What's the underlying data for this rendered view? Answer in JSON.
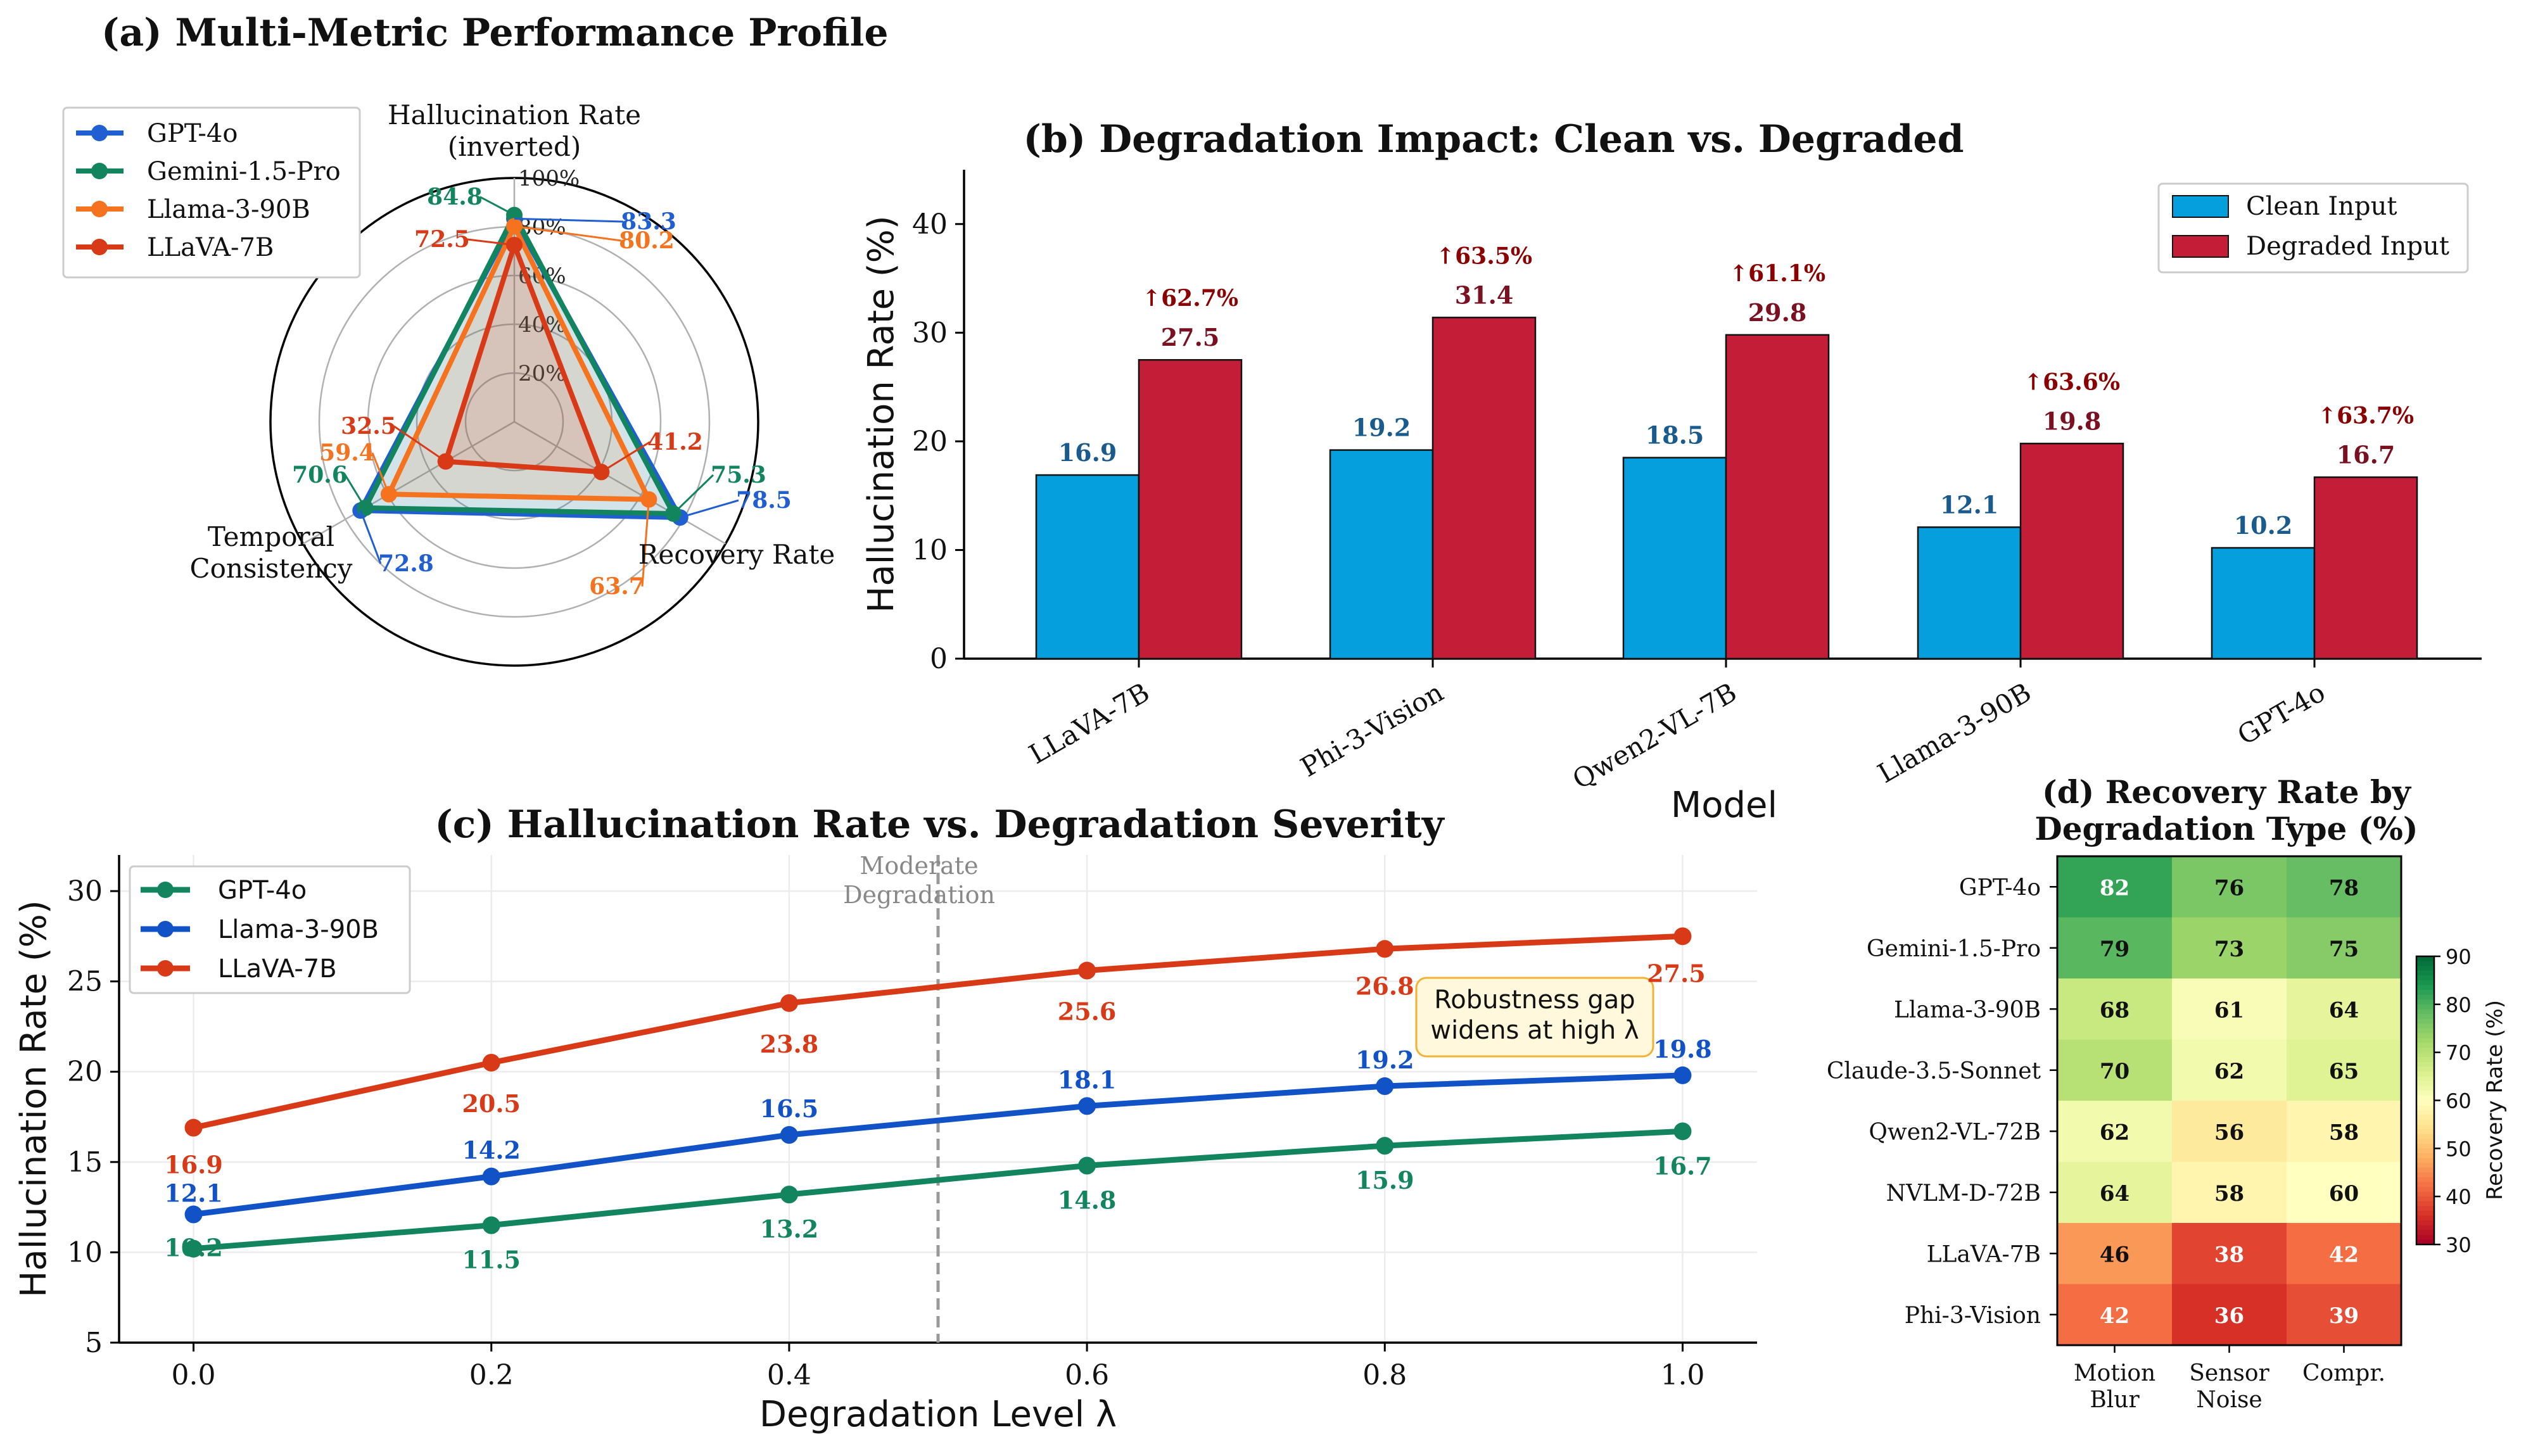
{
  "colors": {
    "gpt4o_radar": "#1f5fd1",
    "gemini": "#12855f",
    "llama_radar": "#f5731f",
    "llava": "#d83a17",
    "clean_bar": "#059fdd",
    "degraded_bar": "#c41d38",
    "gpt4o_line": "#12855f",
    "llama_line": "#1152c6",
    "llava_line": "#d83a17",
    "pct_annot": "#8b0000",
    "annot_box_bg": "#fff8dc",
    "annot_box_border": "#f2b233"
  },
  "chart_data": [
    {
      "id": "a",
      "type": "radar",
      "title": "(a) Multi-Metric Performance Profile",
      "axes": [
        "Hallucination Rate\n(inverted)",
        "Recovery Rate",
        "Temporal\nConsistency"
      ],
      "radial_ticks": [
        "20%",
        "40%",
        "60%",
        "80%",
        "100%"
      ],
      "rlim": [
        0,
        100
      ],
      "series": [
        {
          "name": "GPT-4o",
          "values": [
            83.3,
            78.5,
            72.8
          ]
        },
        {
          "name": "Gemini-1.5-Pro",
          "values": [
            84.8,
            75.3,
            70.6
          ]
        },
        {
          "name": "Llama-3-90B",
          "values": [
            80.2,
            63.7,
            59.4
          ]
        },
        {
          "name": "LLaVA-7B",
          "values": [
            72.5,
            41.2,
            32.5
          ]
        }
      ],
      "legend": "top-left"
    },
    {
      "id": "b",
      "type": "bar",
      "title": "(b) Degradation Impact: Clean vs. Degraded",
      "xlabel": "Model",
      "ylabel": "Hallucination Rate (%)",
      "ylim": [
        0,
        45
      ],
      "yticks": [
        0,
        10,
        20,
        30,
        40
      ],
      "categories": [
        "LLaVA-7B",
        "Phi-3-Vision",
        "Qwen2-VL-7B",
        "Llama-3-90B",
        "GPT-4o"
      ],
      "series": [
        {
          "name": "Clean Input",
          "values": [
            16.9,
            19.2,
            18.5,
            12.1,
            10.2
          ]
        },
        {
          "name": "Degraded Input",
          "values": [
            27.5,
            31.4,
            29.8,
            19.8,
            16.7
          ]
        }
      ],
      "increase_labels": [
        "↑62.7%",
        "↑63.5%",
        "↑61.1%",
        "↑63.6%",
        "↑63.7%"
      ],
      "legend": "top-right"
    },
    {
      "id": "c",
      "type": "line",
      "title": "(c) Hallucination Rate vs. Degradation Severity",
      "xlabel": "Degradation Level λ",
      "ylabel": "Hallucination Rate (%)",
      "xlim": [
        -0.05,
        1.05
      ],
      "ylim": [
        5,
        32
      ],
      "xticks": [
        "0.0",
        "0.2",
        "0.4",
        "0.6",
        "0.8",
        "1.0"
      ],
      "yticks": [
        5,
        10,
        15,
        20,
        25,
        30
      ],
      "x": [
        0.0,
        0.2,
        0.4,
        0.6,
        0.8,
        1.0
      ],
      "series": [
        {
          "name": "GPT-4o",
          "values": [
            10.2,
            11.5,
            13.2,
            14.8,
            15.9,
            16.7
          ]
        },
        {
          "name": "Llama-3-90B",
          "values": [
            12.1,
            14.2,
            16.5,
            18.1,
            19.2,
            19.8
          ]
        },
        {
          "name": "LLaVA-7B",
          "values": [
            16.9,
            20.5,
            23.8,
            25.6,
            26.8,
            27.5
          ]
        }
      ],
      "vline": {
        "x": 0.5,
        "label": "Moderate\nDegradation"
      },
      "annotation": "Robustness gap\nwidens at high λ",
      "legend": "top-left"
    },
    {
      "id": "d",
      "type": "heatmap",
      "title": "(d) Recovery Rate by\nDegradation Type (%)",
      "rows": [
        "GPT-4o",
        "Gemini-1.5-Pro",
        "Llama-3-90B",
        "Claude-3.5-Sonnet",
        "Qwen2-VL-72B",
        "NVLM-D-72B",
        "LLaVA-7B",
        "Phi-3-Vision"
      ],
      "columns": [
        "Motion\nBlur",
        "Sensor\nNoise",
        "Compr."
      ],
      "values": [
        [
          82,
          76,
          78
        ],
        [
          79,
          73,
          75
        ],
        [
          68,
          61,
          64
        ],
        [
          70,
          62,
          65
        ],
        [
          62,
          56,
          58
        ],
        [
          64,
          58,
          60
        ],
        [
          46,
          38,
          42
        ],
        [
          42,
          36,
          39
        ]
      ],
      "vmin": 30,
      "vmax": 90,
      "colorbar_label": "Recovery Rate (%)",
      "colorbar_ticks": [
        30,
        40,
        50,
        60,
        70,
        80,
        90
      ]
    }
  ]
}
